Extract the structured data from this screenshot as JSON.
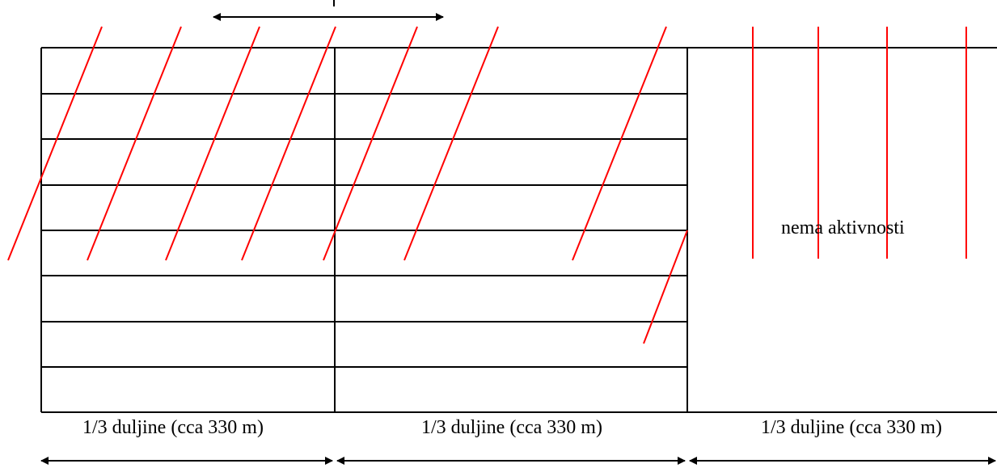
{
  "segments": [
    {
      "label": "1/3 duljine (cca 330 m)"
    },
    {
      "label": "1/3 duljine (cca 330 m)"
    },
    {
      "label": "1/3 duljine (cca 330 m)"
    }
  ],
  "no_activity_note": "nema aktivnosti",
  "colors": {
    "outline": "#000000",
    "hatch": "#ff0000"
  }
}
